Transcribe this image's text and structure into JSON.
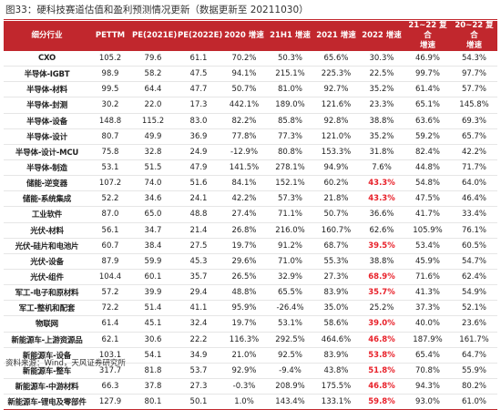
{
  "caption": "图33：硬科技赛道估值和盈利预测情况更新（数据更新至 20211030）",
  "headers": [
    "细分行业",
    "PETTM",
    "PE(2021E)",
    "PE(2022E)",
    "2020 增速",
    "21H1 增速",
    "2021 增速",
    "2022 增速",
    "21~22 复合\n增速",
    "20~22 复合\n增速"
  ],
  "rows": [
    {
      "cells": [
        "CXO",
        "105.2",
        "79.6",
        "61.1",
        "70.2%",
        "50.3%",
        "65.6%",
        "30.3%",
        "46.9%",
        "54.3%"
      ],
      "hl": false
    },
    {
      "cells": [
        "半导体-IGBT",
        "98.9",
        "58.2",
        "47.5",
        "94.1%",
        "215.1%",
        "225.3%",
        "22.5%",
        "99.7%",
        "97.7%"
      ],
      "hl": false
    },
    {
      "cells": [
        "半导体-材料",
        "99.5",
        "64.4",
        "47.7",
        "50.7%",
        "81.0%",
        "92.7%",
        "35.2%",
        "61.4%",
        "57.7%"
      ],
      "hl": false
    },
    {
      "cells": [
        "半导体-封测",
        "30.2",
        "22.0",
        "17.3",
        "442.1%",
        "189.0%",
        "121.6%",
        "23.3%",
        "65.1%",
        "145.8%"
      ],
      "hl": false
    },
    {
      "cells": [
        "半导体-设备",
        "148.8",
        "115.2",
        "83.0",
        "82.2%",
        "85.8%",
        "92.8%",
        "38.8%",
        "63.6%",
        "69.3%"
      ],
      "hl": false
    },
    {
      "cells": [
        "半导体-设计",
        "80.7",
        "49.9",
        "36.9",
        "77.8%",
        "77.3%",
        "121.0%",
        "35.2%",
        "59.2%",
        "65.7%"
      ],
      "hl": false
    },
    {
      "cells": [
        "半导体-设计-MCU",
        "75.8",
        "32.8",
        "24.9",
        "-12.9%",
        "80.8%",
        "153.3%",
        "31.8%",
        "82.4%",
        "42.2%"
      ],
      "hl": false
    },
    {
      "cells": [
        "半导体-制造",
        "53.1",
        "51.5",
        "47.9",
        "141.5%",
        "278.1%",
        "94.9%",
        "7.6%",
        "44.8%",
        "71.7%"
      ],
      "hl": false
    },
    {
      "cells": [
        "储能-逆变器",
        "107.2",
        "74.0",
        "51.6",
        "84.1%",
        "152.1%",
        "60.2%",
        "43.3%",
        "54.8%",
        "64.0%"
      ],
      "hl": true
    },
    {
      "cells": [
        "储能-系统集成",
        "52.2",
        "34.6",
        "24.1",
        "42.2%",
        "57.3%",
        "21.8%",
        "43.3%",
        "47.5%",
        "46.4%"
      ],
      "hl": true
    },
    {
      "cells": [
        "工业软件",
        "87.0",
        "65.0",
        "48.8",
        "27.4%",
        "71.1%",
        "50.7%",
        "36.6%",
        "41.7%",
        "33.4%"
      ],
      "hl": false
    },
    {
      "cells": [
        "光伏-材料",
        "56.1",
        "34.7",
        "21.4",
        "26.8%",
        "216.0%",
        "160.7%",
        "62.6%",
        "105.9%",
        "76.1%"
      ],
      "hl": false
    },
    {
      "cells": [
        "光伏-硅片和电池片",
        "60.7",
        "38.4",
        "27.5",
        "19.7%",
        "91.2%",
        "68.7%",
        "39.5%",
        "53.4%",
        "60.5%"
      ],
      "hl": true
    },
    {
      "cells": [
        "光伏-设备",
        "87.9",
        "59.9",
        "45.3",
        "29.6%",
        "71.0%",
        "55.3%",
        "38.8%",
        "45.9%",
        "54.7%"
      ],
      "hl": false
    },
    {
      "cells": [
        "光伏-组件",
        "104.4",
        "60.1",
        "35.7",
        "26.5%",
        "32.9%",
        "27.3%",
        "68.9%",
        "71.6%",
        "62.4%"
      ],
      "hl": true
    },
    {
      "cells": [
        "军工-电子和原材料",
        "57.2",
        "39.9",
        "29.4",
        "48.8%",
        "65.5%",
        "83.9%",
        "35.7%",
        "41.3%",
        "54.9%"
      ],
      "hl": true
    },
    {
      "cells": [
        "军工-整机和配套",
        "72.2",
        "51.4",
        "41.1",
        "95.9%",
        "-26.4%",
        "35.0%",
        "25.2%",
        "37.3%",
        "52.1%"
      ],
      "hl": false
    },
    {
      "cells": [
        "物联网",
        "61.4",
        "45.1",
        "32.4",
        "19.7%",
        "53.1%",
        "58.6%",
        "39.0%",
        "40.0%",
        "23.6%"
      ],
      "hl": true
    },
    {
      "cells": [
        "新能源车-上游资源品",
        "62.1",
        "30.6",
        "22.2",
        "116.3%",
        "292.5%",
        "464.6%",
        "46.8%",
        "187.9%",
        "161.7%"
      ],
      "hl": true
    },
    {
      "cells": [
        "新能源车-设备",
        "103.1",
        "54.1",
        "34.9",
        "21.0%",
        "92.5%",
        "83.9%",
        "53.8%",
        "65.4%",
        "64.7%"
      ],
      "hl": true
    },
    {
      "cells": [
        "新能源车-整车",
        "317.7",
        "81.8",
        "53.7",
        "92.9%",
        "-9.4%",
        "43.8%",
        "51.8%",
        "70.8%",
        "55.9%"
      ],
      "hl": true
    },
    {
      "cells": [
        "新能源车-中游材料",
        "66.3",
        "37.8",
        "27.3",
        "-0.3%",
        "208.9%",
        "175.5%",
        "46.8%",
        "94.3%",
        "80.2%"
      ],
      "hl": true
    },
    {
      "cells": [
        "新能源车-锂电及零部件",
        "127.9",
        "80.1",
        "50.1",
        "1.0%",
        "143.4%",
        "133.1%",
        "59.8%",
        "93.0%",
        "61.0%"
      ],
      "hl": true
    }
  ],
  "source": "资料来源：Wind，天风证券研究所"
}
